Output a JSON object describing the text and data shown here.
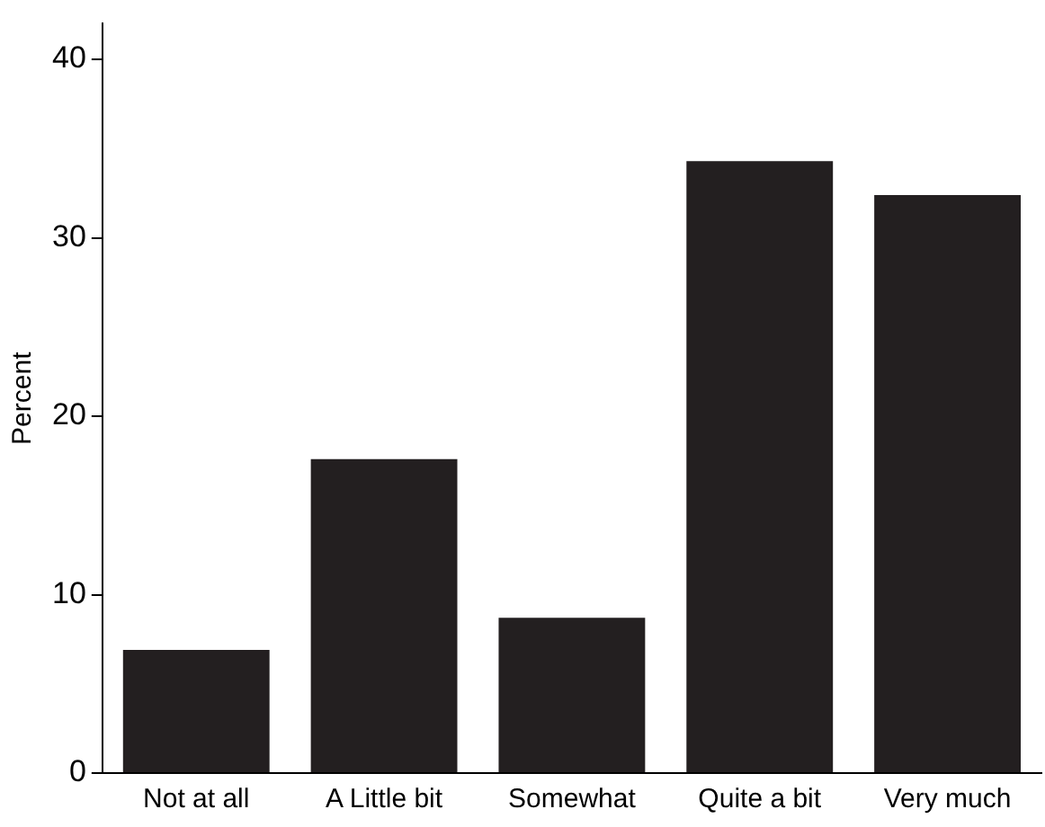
{
  "chart_data": {
    "type": "bar",
    "ylabel": "Percent",
    "categories": [
      "Not at all",
      "A Little bit",
      "Somewhat",
      "Quite a bit",
      "Very much"
    ],
    "values": [
      6.9,
      17.6,
      8.7,
      34.3,
      32.4
    ],
    "color": "#231f20",
    "ylim": [
      0,
      42
    ],
    "yticks": [
      0,
      10,
      20,
      30,
      40
    ],
    "grid": false,
    "legend": false
  }
}
